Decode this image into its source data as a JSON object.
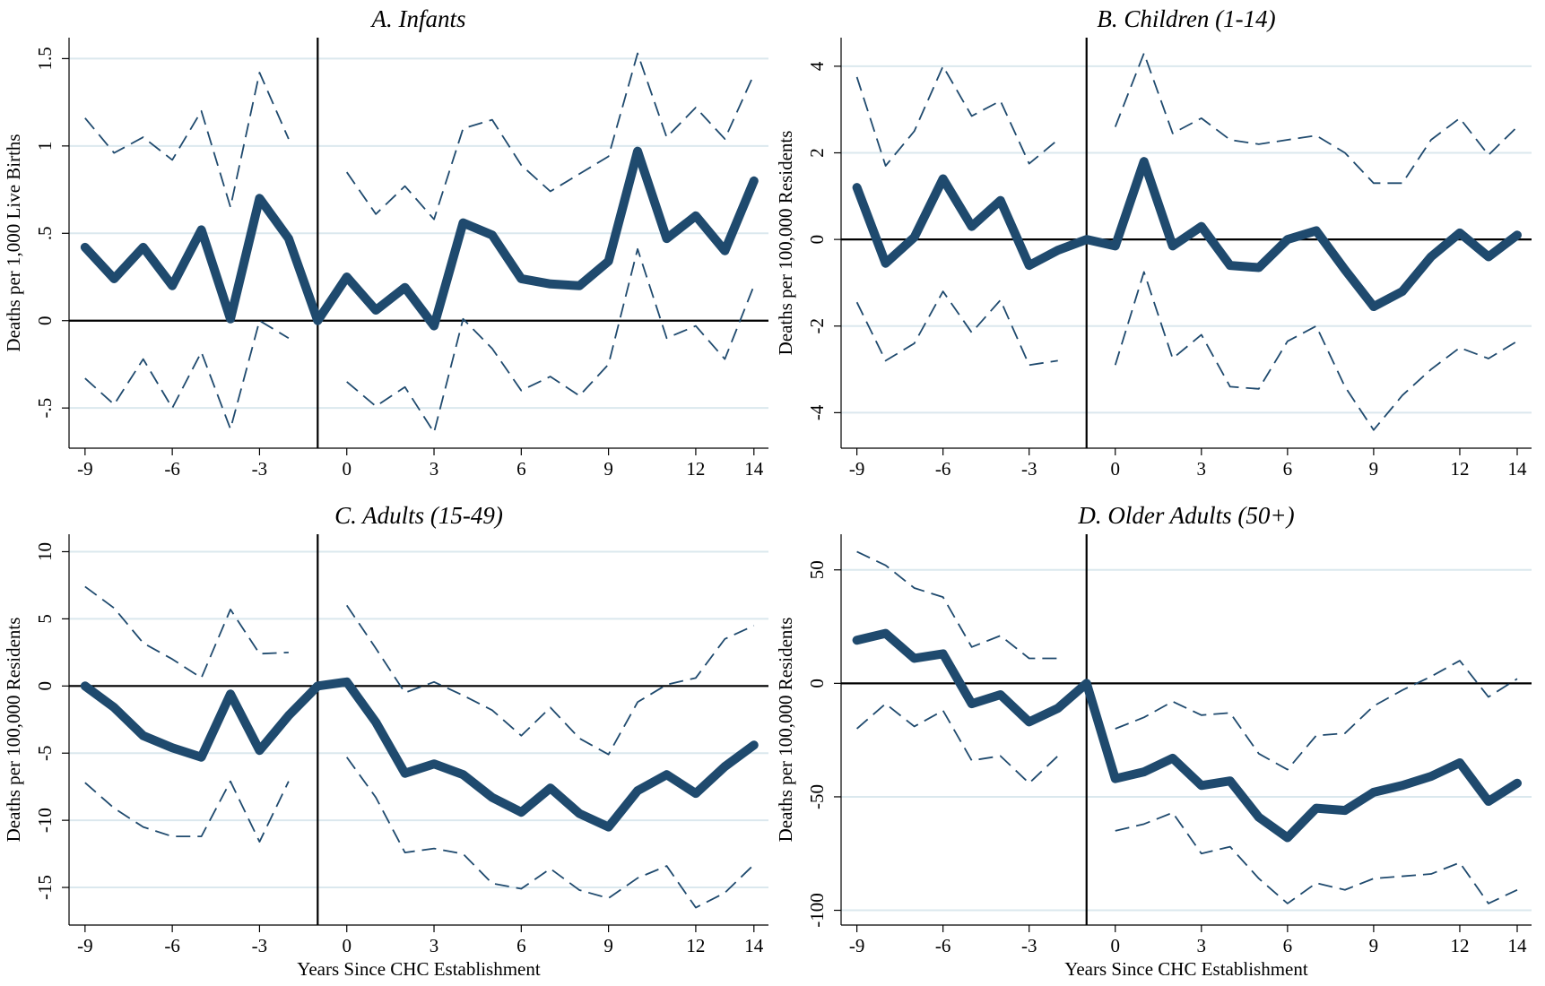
{
  "chart_data": [
    {
      "type": "line",
      "title": "A. Infants",
      "y_label": "Deaths per 1,000 Live Births",
      "x": [
        -9,
        -8,
        -7,
        -6,
        -5,
        -4,
        -3,
        -2,
        -1,
        0,
        1,
        2,
        3,
        4,
        5,
        6,
        7,
        8,
        9,
        10,
        11,
        12,
        13,
        14
      ],
      "xlim": [
        -9.55,
        14.5
      ],
      "xticks": [
        -9,
        -6,
        -3,
        0,
        3,
        6,
        9,
        12,
        14
      ],
      "ylim": [
        -0.73,
        1.62
      ],
      "yticks": [
        {
          "value": -0.5,
          "label": "-.5"
        },
        0,
        {
          "value": 0.5,
          "label": ".5"
        },
        1,
        1.5
      ],
      "grid": true,
      "hline": 0,
      "vline": -1,
      "series": [
        {
          "color": "#1f4a6e",
          "style": "solid",
          "values": [
            0.42,
            0.24,
            0.42,
            0.2,
            0.52,
            0.01,
            0.7,
            0.47,
            0,
            0.25,
            0.06,
            0.19,
            -0.03,
            0.56,
            0.49,
            0.24,
            0.21,
            0.2,
            0.34,
            0.97,
            0.47,
            0.6,
            0.4,
            0.8
          ]
        },
        {
          "color": "#1f4a6e",
          "style": "dashed",
          "values": [
            1.16,
            0.96,
            1.05,
            0.92,
            1.2,
            0.65,
            1.42,
            1.04,
            null,
            0.85,
            0.61,
            0.77,
            0.58,
            1.1,
            1.15,
            0.89,
            0.74,
            0.84,
            0.94,
            1.53,
            1.05,
            1.22,
            1.04,
            1.41
          ]
        },
        {
          "color": "#1f4a6e",
          "style": "dashed",
          "values": [
            -0.33,
            -0.48,
            -0.22,
            -0.5,
            -0.18,
            -0.62,
            0.0,
            -0.1,
            null,
            -0.35,
            -0.49,
            -0.38,
            -0.64,
            0.01,
            -0.16,
            -0.4,
            -0.32,
            -0.43,
            -0.25,
            0.41,
            -0.1,
            -0.03,
            -0.22,
            0.2
          ]
        }
      ]
    },
    {
      "type": "line",
      "title": "B. Children (1-14)",
      "y_label": "Deaths per 100,000 Residents",
      "x": [
        -9,
        -8,
        -7,
        -6,
        -5,
        -4,
        -3,
        -2,
        -1,
        0,
        1,
        2,
        3,
        4,
        5,
        6,
        7,
        8,
        9,
        10,
        11,
        12,
        13,
        14
      ],
      "xlim": [
        -9.55,
        14.5
      ],
      "xticks": [
        -9,
        -6,
        -3,
        0,
        3,
        6,
        9,
        12,
        14
      ],
      "ylim": [
        -4.82,
        4.66
      ],
      "yticks": [
        -4,
        -2,
        0,
        2,
        4
      ],
      "grid": true,
      "hline": 0,
      "vline": -1,
      "series": [
        {
          "color": "#1f4a6e",
          "style": "solid",
          "values": [
            1.2,
            -0.55,
            0.05,
            1.4,
            0.3,
            0.9,
            -0.6,
            -0.25,
            0,
            -0.15,
            1.8,
            -0.15,
            0.3,
            -0.6,
            -0.65,
            0,
            0.2,
            -0.7,
            -1.55,
            -1.2,
            -0.4,
            0.15,
            -0.4,
            0.1
          ]
        },
        {
          "color": "#1f4a6e",
          "style": "dashed",
          "values": [
            3.75,
            1.7,
            2.5,
            4.0,
            2.85,
            3.2,
            1.75,
            2.3,
            null,
            2.6,
            4.3,
            2.45,
            2.8,
            2.3,
            2.2,
            2.3,
            2.4,
            2.0,
            1.3,
            1.3,
            2.3,
            2.8,
            1.95,
            2.6
          ]
        },
        {
          "color": "#1f4a6e",
          "style": "dashed",
          "values": [
            -1.45,
            -2.8,
            -2.4,
            -1.2,
            -2.15,
            -1.4,
            -2.9,
            -2.8,
            null,
            -2.9,
            -0.75,
            -2.75,
            -2.2,
            -3.4,
            -3.45,
            -2.35,
            -2.0,
            -3.4,
            -4.4,
            -3.6,
            -3.0,
            -2.5,
            -2.75,
            -2.35
          ]
        }
      ]
    },
    {
      "type": "line",
      "title": "C. Adults (15-49)",
      "y_label": "Deaths per 100,000 Residents",
      "x_label": "Years Since CHC Establishment",
      "x": [
        -9,
        -8,
        -7,
        -6,
        -5,
        -4,
        -3,
        -2,
        -1,
        0,
        1,
        2,
        3,
        4,
        5,
        6,
        7,
        8,
        9,
        10,
        11,
        12,
        13,
        14
      ],
      "xlim": [
        -9.55,
        14.5
      ],
      "xticks": [
        -9,
        -6,
        -3,
        0,
        3,
        6,
        9,
        12,
        14
      ],
      "ylim": [
        -17.8,
        11.3
      ],
      "yticks": [
        -15,
        -10,
        -5,
        0,
        5,
        10
      ],
      "grid": true,
      "hline": 0,
      "vline": -1,
      "series": [
        {
          "color": "#1f4a6e",
          "style": "solid",
          "values": [
            0,
            -1.6,
            -3.7,
            -4.6,
            -5.3,
            -0.6,
            -4.8,
            -2.2,
            0,
            0.3,
            -2.7,
            -6.5,
            -5.8,
            -6.6,
            -8.3,
            -9.4,
            -7.6,
            -9.5,
            -10.5,
            -7.8,
            -6.6,
            -8.0,
            -6.0,
            -4.4
          ]
        },
        {
          "color": "#1f4a6e",
          "style": "dashed",
          "values": [
            7.4,
            5.8,
            3.2,
            2.0,
            0.6,
            5.7,
            2.4,
            2.5,
            null,
            6.0,
            2.8,
            -0.5,
            0.3,
            -0.7,
            -1.8,
            -3.7,
            -1.6,
            -3.9,
            -5.1,
            -1.2,
            0.1,
            0.6,
            3.5,
            4.5
          ]
        },
        {
          "color": "#1f4a6e",
          "style": "dashed",
          "values": [
            -7.2,
            -9.1,
            -10.5,
            -11.2,
            -11.2,
            -7.1,
            -11.6,
            -7.1,
            null,
            -5.3,
            -8.3,
            -12.4,
            -12.1,
            -12.5,
            -14.7,
            -15.1,
            -13.6,
            -15.2,
            -15.8,
            -14.3,
            -13.4,
            -16.5,
            -15.4,
            -13.3
          ]
        }
      ]
    },
    {
      "type": "line",
      "title": "D. Older Adults (50+)",
      "y_label": "Deaths per 100,000 Residents",
      "x_label": "Years Since CHC Establishment",
      "x": [
        -9,
        -8,
        -7,
        -6,
        -5,
        -4,
        -3,
        -2,
        -1,
        0,
        1,
        2,
        3,
        4,
        5,
        6,
        7,
        8,
        9,
        10,
        11,
        12,
        13,
        14
      ],
      "xlim": [
        -9.55,
        14.5
      ],
      "xticks": [
        -9,
        -6,
        -3,
        0,
        3,
        6,
        9,
        12,
        14
      ],
      "ylim": [
        -106.5,
        65.7
      ],
      "yticks": [
        -100,
        -50,
        0,
        50
      ],
      "grid": true,
      "hline": 0,
      "vline": -1,
      "series": [
        {
          "color": "#1f4a6e",
          "style": "solid",
          "values": [
            19,
            22,
            11,
            13,
            -9,
            -5,
            -17,
            -11,
            0,
            -42,
            -39,
            -33,
            -45,
            -43,
            -59,
            -68,
            -55,
            -56,
            -48,
            -45,
            -41,
            -35,
            -52,
            -44
          ]
        },
        {
          "color": "#1f4a6e",
          "style": "dashed",
          "values": [
            58,
            52,
            42,
            38,
            16,
            21,
            11,
            11,
            null,
            -20,
            -15,
            -8,
            -14,
            -13,
            -31,
            -38,
            -23,
            -22,
            -10,
            -3,
            3,
            10,
            -6,
            2
          ]
        },
        {
          "color": "#1f4a6e",
          "style": "dashed",
          "values": [
            -20,
            -9,
            -19,
            -12,
            -34,
            -32,
            -44,
            -32,
            null,
            -65,
            -62,
            -57,
            -75,
            -72,
            -86,
            -97,
            -88,
            -91,
            -86,
            -85,
            -84,
            -79,
            -97,
            -91
          ]
        }
      ]
    }
  ]
}
